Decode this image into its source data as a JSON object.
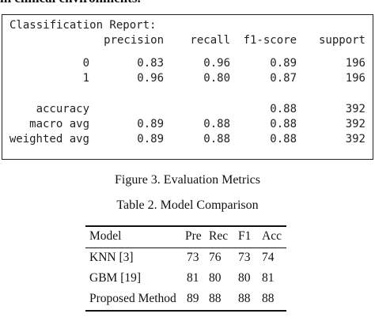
{
  "header": {
    "fragment": "in clinical environments."
  },
  "report": {
    "title": "Classification Report:",
    "columns": [
      "precision",
      "recall",
      "f1-score",
      "support"
    ],
    "rows": [
      {
        "label": "0",
        "cells": [
          "0.83",
          "0.96",
          "0.89",
          "196"
        ]
      },
      {
        "label": "1",
        "cells": [
          "0.96",
          "0.80",
          "0.87",
          "196"
        ]
      },
      {
        "label": "accuracy",
        "cells": [
          null,
          null,
          "0.88",
          "392"
        ]
      },
      {
        "label": "macro avg",
        "cells": [
          "0.89",
          "0.88",
          "0.88",
          "392"
        ]
      },
      {
        "label": "weighted avg",
        "cells": [
          "0.89",
          "0.88",
          "0.88",
          "392"
        ]
      }
    ]
  },
  "figure": {
    "caption": "Figure 3. Evaluation Metrics"
  },
  "table": {
    "caption": "Table 2. Model Comparison",
    "columns": [
      "Model",
      "Pre",
      "Rec",
      "F1",
      "Acc"
    ],
    "rows": [
      [
        "KNN [3]",
        73,
        76,
        73,
        74
      ],
      [
        "GBM [19]",
        81,
        80,
        80,
        81
      ],
      [
        "Proposed Method",
        89,
        88,
        88,
        88
      ]
    ]
  }
}
